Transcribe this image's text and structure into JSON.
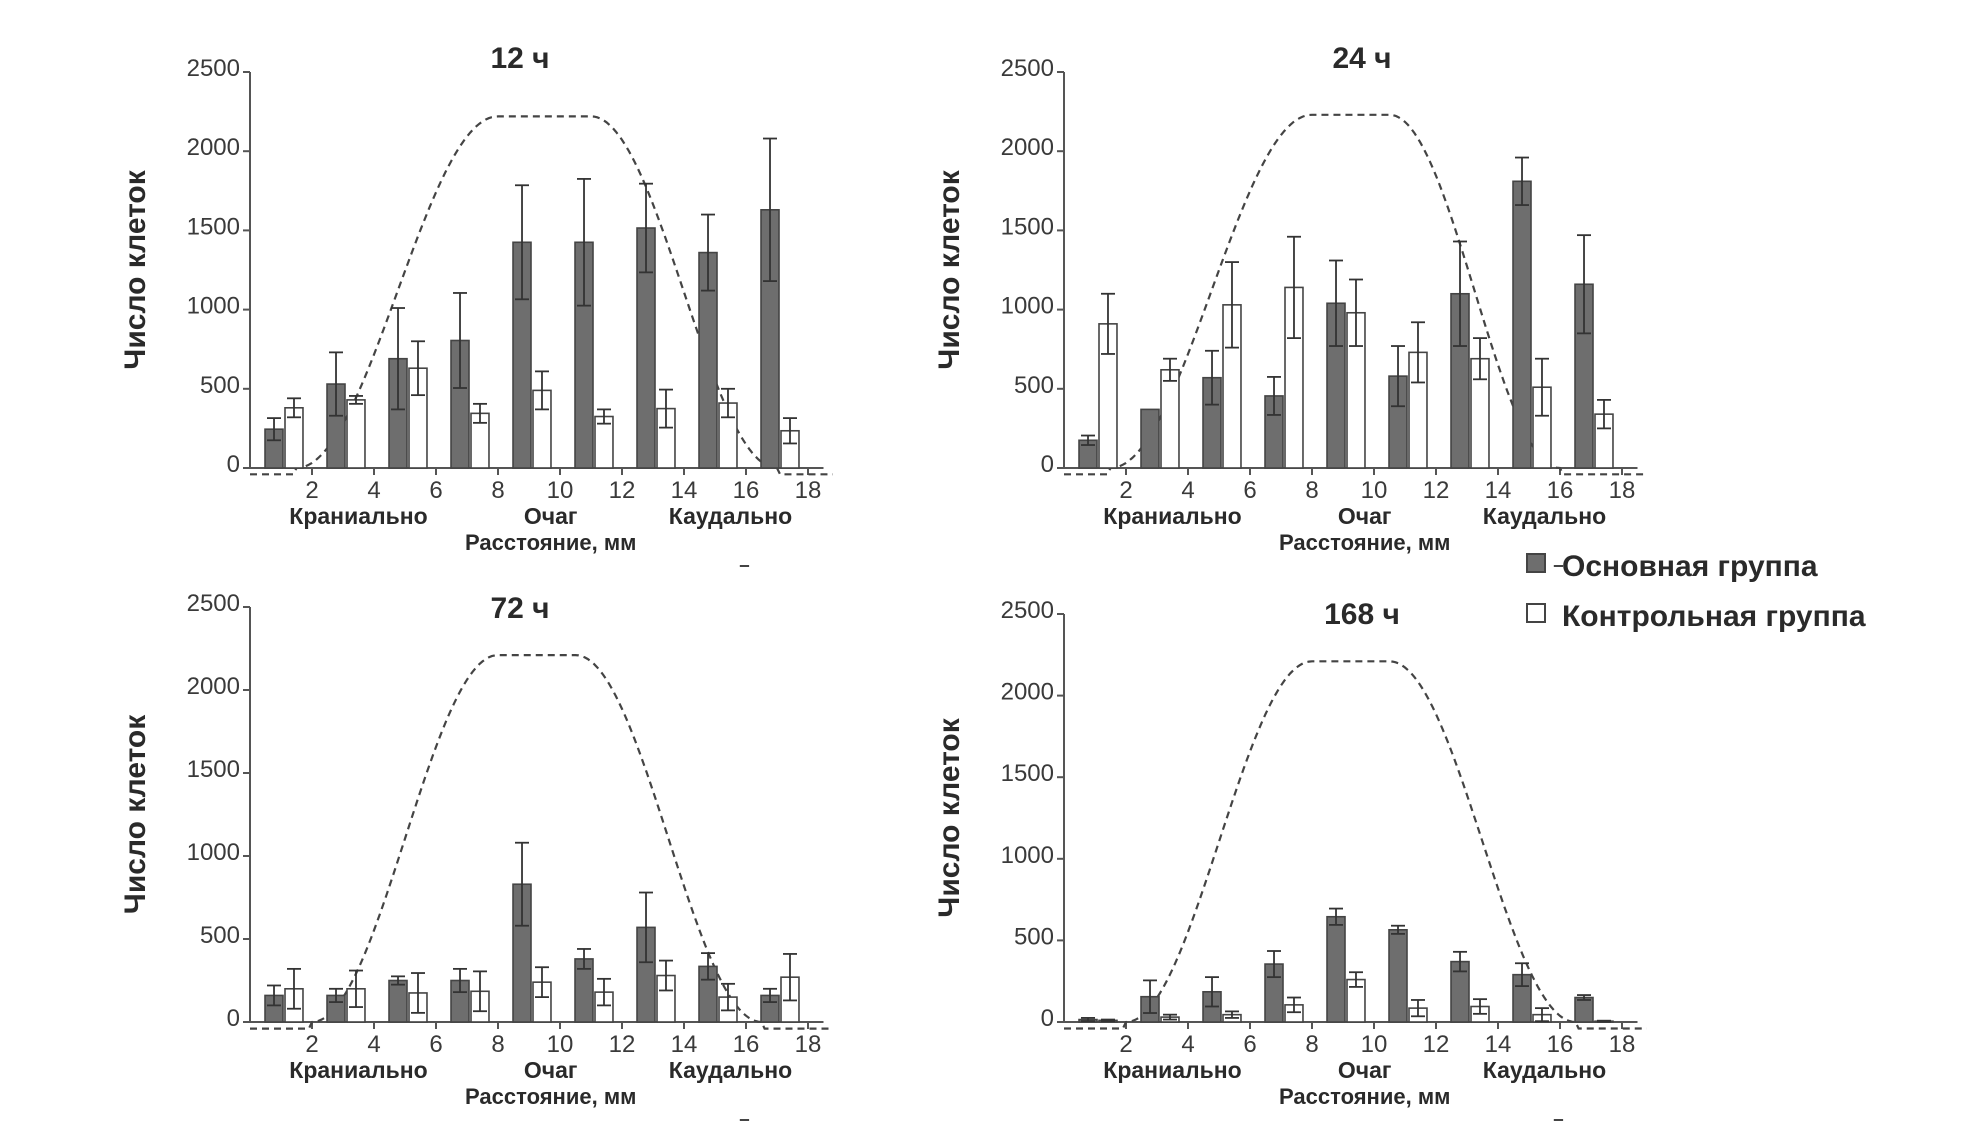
{
  "legend": {
    "items": [
      {
        "label": "Основная группа",
        "key": "main"
      },
      {
        "label": "Контрольная группа",
        "key": "control"
      }
    ]
  },
  "colors": {
    "main": "#6e6e6e",
    "control": "#ffffff",
    "outline": "#444444",
    "curve": "#444444"
  },
  "chart_data": [
    {
      "type": "bar",
      "title": "12 ч",
      "xlabel": "Расстояние, мм",
      "ylabel": "Число клеток",
      "region_labels": [
        "Краниально",
        "Очаг",
        "Каудально"
      ],
      "xlim": [
        0,
        18.5
      ],
      "ylim": [
        0,
        2500
      ],
      "yticks": [
        0,
        500,
        1000,
        1500,
        2000,
        2500
      ],
      "xticks": [
        2,
        4,
        6,
        8,
        10,
        12,
        14,
        16,
        18
      ],
      "grid": false,
      "positions": [
        1,
        3,
        5,
        7,
        9,
        11,
        13,
        15,
        17
      ],
      "series": [
        {
          "name": "Основная группа",
          "values": [
            245,
            530,
            690,
            805,
            1425,
            1425,
            1515,
            1360,
            1630
          ],
          "errors": [
            70,
            200,
            320,
            300,
            360,
            400,
            280,
            240,
            450
          ]
        },
        {
          "name": "Контрольная группа",
          "values": [
            380,
            430,
            630,
            345,
            490,
            325,
            375,
            410,
            235
          ],
          "errors": [
            60,
            25,
            170,
            60,
            120,
            45,
            120,
            90,
            80
          ]
        }
      ],
      "reference_curve": {
        "style": "dashed",
        "peak": 2220,
        "x_rise": [
          1.5,
          6.5
        ],
        "x_plateau": [
          8,
          11
        ],
        "x_fall": [
          12.5,
          17
        ]
      }
    },
    {
      "type": "bar",
      "title": "24 ч",
      "xlabel": "Расстояние, мм",
      "ylabel": "Число клеток",
      "region_labels": [
        "Краниально",
        "Очаг",
        "Каудально"
      ],
      "xlim": [
        0,
        18.5
      ],
      "ylim": [
        0,
        2500
      ],
      "yticks": [
        0,
        500,
        1000,
        1500,
        2000,
        2500
      ],
      "xticks": [
        2,
        4,
        6,
        8,
        10,
        12,
        14,
        16,
        18
      ],
      "grid": false,
      "positions": [
        1,
        3,
        5,
        7,
        9,
        11,
        13,
        15,
        17
      ],
      "series": [
        {
          "name": "Основная группа",
          "values": [
            175,
            370,
            570,
            455,
            1040,
            580,
            1100,
            1810,
            1160
          ],
          "errors": [
            30,
            0,
            170,
            120,
            270,
            190,
            330,
            150,
            310
          ]
        },
        {
          "name": "Контрольная группа",
          "values": [
            910,
            620,
            1030,
            1140,
            980,
            730,
            690,
            510,
            340
          ],
          "errors": [
            190,
            70,
            270,
            320,
            210,
            190,
            130,
            180,
            90
          ]
        }
      ],
      "reference_curve": {
        "style": "dashed",
        "peak": 2230,
        "x_rise": [
          1.5,
          6.5
        ],
        "x_plateau": [
          8,
          10.5
        ],
        "x_fall": [
          12.5,
          16
        ]
      }
    },
    {
      "type": "bar",
      "title": "72 ч",
      "xlabel": "Расстояние, мм",
      "ylabel": "Число клеток",
      "region_labels": [
        "Краниально",
        "Очаг",
        "Каудально"
      ],
      "xlim": [
        0,
        18.5
      ],
      "ylim": [
        0,
        2500
      ],
      "yticks": [
        0,
        500,
        1000,
        1500,
        2000,
        2500
      ],
      "xticks": [
        2,
        4,
        6,
        8,
        10,
        12,
        14,
        16,
        18
      ],
      "grid": false,
      "positions": [
        1,
        3,
        5,
        7,
        9,
        11,
        13,
        15,
        17
      ],
      "series": [
        {
          "name": "Основная группа",
          "values": [
            160,
            160,
            250,
            250,
            830,
            380,
            570,
            335,
            160
          ],
          "errors": [
            60,
            40,
            25,
            70,
            250,
            60,
            210,
            80,
            40
          ]
        },
        {
          "name": "Контрольная группа",
          "values": [
            200,
            200,
            175,
            185,
            240,
            180,
            280,
            150,
            270
          ],
          "errors": [
            120,
            110,
            120,
            120,
            90,
            80,
            90,
            80,
            140
          ]
        }
      ],
      "reference_curve": {
        "style": "dashed",
        "peak": 2210,
        "x_rise": [
          2,
          6.5
        ],
        "x_plateau": [
          8,
          10.5
        ],
        "x_fall": [
          12,
          16.5
        ]
      }
    },
    {
      "type": "bar",
      "title": "168 ч",
      "xlabel": "Расстояние, мм",
      "ylabel": "Число клеток",
      "region_labels": [
        "Краниально",
        "Очаг",
        "Каудально"
      ],
      "xlim": [
        0,
        18.5
      ],
      "ylim": [
        0,
        2500
      ],
      "yticks": [
        0,
        500,
        1000,
        1500,
        2000,
        2500
      ],
      "xticks": [
        2,
        4,
        6,
        8,
        10,
        12,
        14,
        16,
        18
      ],
      "grid": false,
      "positions": [
        1,
        3,
        5,
        7,
        9,
        11,
        13,
        15,
        17
      ],
      "series": [
        {
          "name": "Основная группа",
          "values": [
            15,
            155,
            185,
            355,
            645,
            565,
            370,
            290,
            150
          ],
          "errors": [
            10,
            100,
            90,
            80,
            50,
            25,
            60,
            70,
            15
          ]
        },
        {
          "name": "Контрольная группа",
          "values": [
            10,
            30,
            45,
            105,
            260,
            85,
            95,
            45,
            5
          ],
          "errors": [
            5,
            15,
            20,
            45,
            45,
            50,
            45,
            40,
            3
          ]
        }
      ],
      "reference_curve": {
        "style": "dashed",
        "peak": 2210,
        "x_rise": [
          2,
          6.5
        ],
        "x_plateau": [
          8,
          10.5
        ],
        "x_fall": [
          12,
          16.5
        ]
      }
    }
  ]
}
